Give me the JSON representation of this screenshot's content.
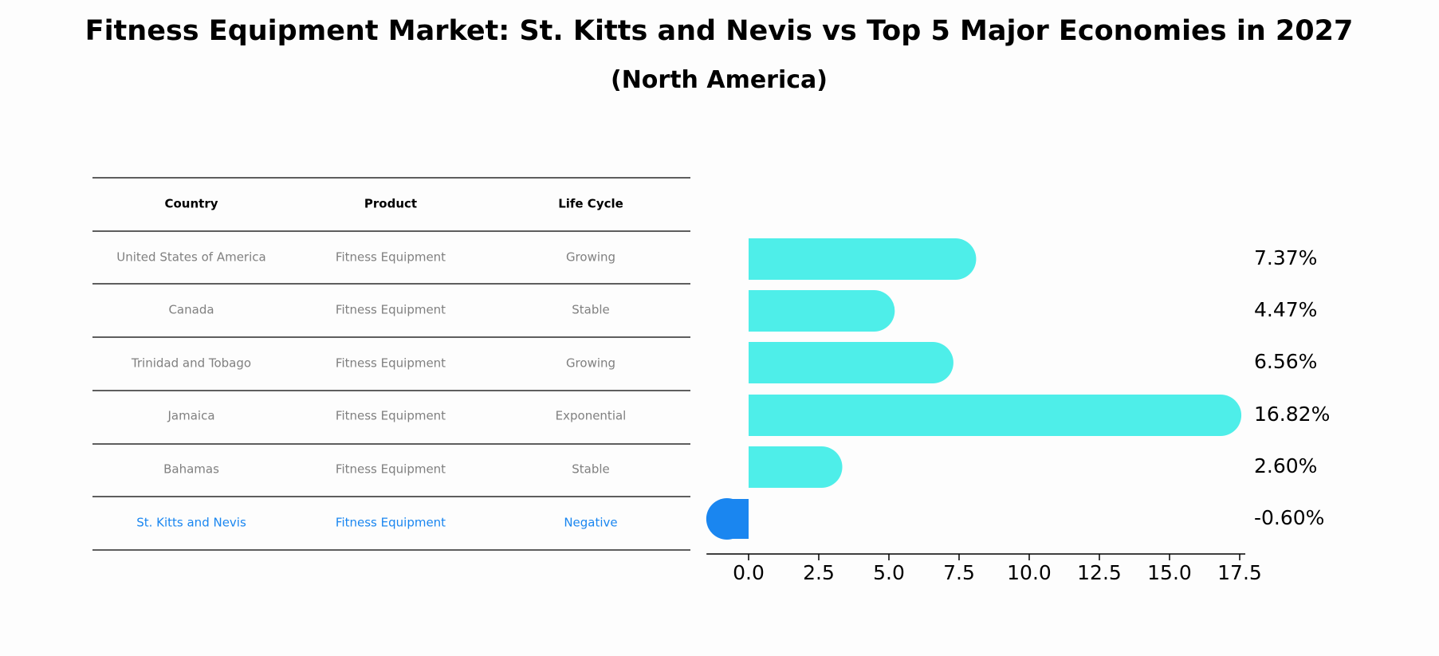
{
  "chart_data": {
    "type": "bar",
    "title": "Fitness Equipment Market: St. Kitts and Nevis vs Top 5 Major Economies in 2027",
    "subtitle": "(North America)",
    "table": {
      "columns": [
        "Country",
        "Product",
        "Life Cycle"
      ],
      "rows": [
        [
          "United States of America",
          "Fitness Equipment",
          "Growing"
        ],
        [
          "Canada",
          "Fitness Equipment",
          "Stable"
        ],
        [
          "Trinidad and Tobago",
          "Fitness Equipment",
          "Growing"
        ],
        [
          "Jamaica",
          "Fitness Equipment",
          "Exponential"
        ],
        [
          "Bahamas",
          "Fitness Equipment",
          "Stable"
        ],
        [
          "St. Kitts and Nevis",
          "Fitness Equipment",
          "Negative"
        ]
      ],
      "highlight_row": 5
    },
    "categories": [
      "United States of America",
      "Canada",
      "Trinidad and Tobago",
      "Jamaica",
      "Bahamas",
      "St. Kitts and Nevis"
    ],
    "values": [
      7.37,
      4.47,
      6.56,
      16.82,
      2.6,
      -0.6
    ],
    "value_labels": [
      "7.37%",
      "4.47%",
      "6.56%",
      "16.82%",
      "2.60%",
      "-0.60%"
    ],
    "xlim": [
      -1.5,
      17.7
    ],
    "xticks": [
      0.0,
      2.5,
      5.0,
      7.5,
      10.0,
      12.5,
      15.0,
      17.5
    ],
    "xtick_labels": [
      "0.0",
      "2.5",
      "5.0",
      "7.5",
      "10.0",
      "12.5",
      "15.0",
      "17.5"
    ],
    "xlabel": "",
    "ylabel": "",
    "grid": false,
    "colors": {
      "bar": "#4eeee9",
      "highlight_bar": "#1a86f0",
      "highlight_text": "#1a86f0",
      "table_text": "#808080",
      "header_text": "#000000",
      "rule": "#000000"
    }
  }
}
